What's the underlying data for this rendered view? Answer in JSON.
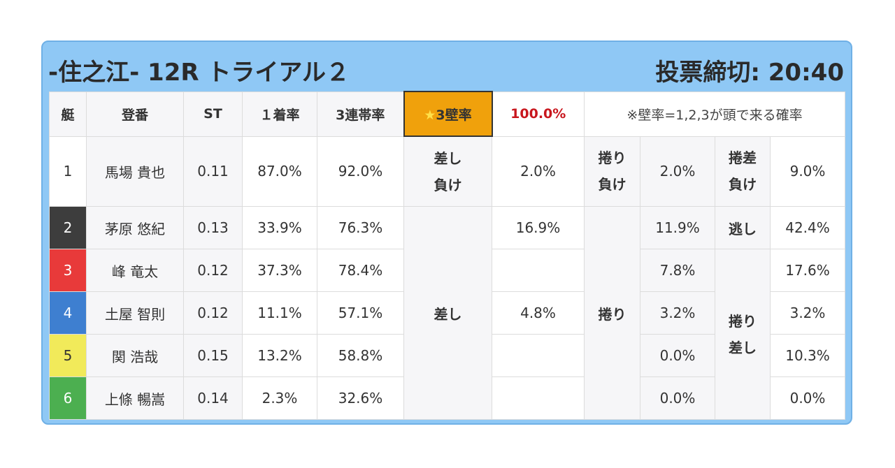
{
  "header": {
    "title": "-住之江- 12R トライアル２",
    "deadline": "投票締切: 20:40"
  },
  "columns": {
    "boat": "艇",
    "register": "登番",
    "st": "ST",
    "first_rate": "１着率",
    "trio_rate": "3連帯率",
    "wall_label_star": "★",
    "wall_label": "3壁率",
    "wall_rate": "100.0%",
    "note": "※壁率=1,2,3が頭で来る確率"
  },
  "colors": {
    "boat1": "#ffffff",
    "boat2": "#3d3d3d",
    "boat3": "#e83a3a",
    "boat4": "#3e7fd0",
    "boat5": "#f1ea5a",
    "boat6": "#4caf50",
    "wall_header": "#f0a10c",
    "wall_rate_text": "#c8161d",
    "frame": "#8fc8f5"
  },
  "rows": [
    {
      "boat": "1",
      "name": "馬場 貴也",
      "st": "0.11",
      "first": "87.0%",
      "trio": "92.0%",
      "a": "2.0%",
      "b": "2.0%",
      "c": "9.0%"
    },
    {
      "boat": "2",
      "name": "茅原 悠紀",
      "st": "0.13",
      "first": "33.9%",
      "trio": "76.3%",
      "a": "16.9%",
      "b": "11.9%",
      "c": "42.4%"
    },
    {
      "boat": "3",
      "name": "峰 竜太",
      "st": "0.12",
      "first": "37.3%",
      "trio": "78.4%",
      "a": "",
      "b": "7.8%",
      "c": "17.6%"
    },
    {
      "boat": "4",
      "name": "土屋 智則",
      "st": "0.12",
      "first": "11.1%",
      "trio": "57.1%",
      "a": "4.8%",
      "b": "3.2%",
      "c": "3.2%"
    },
    {
      "boat": "5",
      "name": "関 浩哉",
      "st": "0.15",
      "first": "13.2%",
      "trio": "58.8%",
      "a": "",
      "b": "0.0%",
      "c": "10.3%"
    },
    {
      "boat": "6",
      "name": "上條 暢嵩",
      "st": "0.14",
      "first": "2.3%",
      "trio": "32.6%",
      "a": "",
      "b": "0.0%",
      "c": "0.0%"
    }
  ],
  "labels": {
    "sashi_make_1": "差し",
    "sashi_make_2": "負け",
    "makuri_make_1": "捲り",
    "makuri_make_2": "負け",
    "makurizashi_make_1": "捲差",
    "makurizashi_make_2": "負け",
    "sashi": "差し",
    "makuri": "捲り",
    "nige": "逃し",
    "makurizashi_1": "捲り",
    "makurizashi_2": "差し"
  }
}
